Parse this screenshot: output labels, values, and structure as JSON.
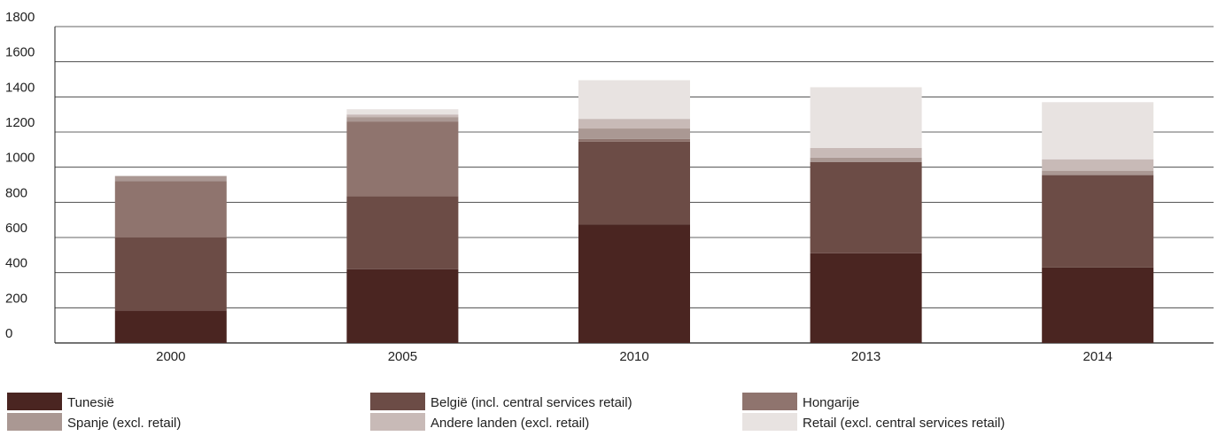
{
  "chart_data": {
    "type": "bar",
    "stacked": true,
    "title": "",
    "xlabel": "",
    "ylabel": "",
    "ylim": [
      0,
      1800
    ],
    "yticks": [
      0,
      200,
      400,
      600,
      800,
      1000,
      1200,
      1400,
      1600,
      1800
    ],
    "grid": true,
    "legend_position": "bottom",
    "categories": [
      "2000",
      "2005",
      "2010",
      "2013",
      "2014"
    ],
    "series": [
      {
        "name": "Tunesië",
        "color": "#4a2521",
        "values": [
          185,
          420,
          675,
          510,
          430
        ]
      },
      {
        "name": "België (incl. central services retail)",
        "color": "#6c4c46",
        "values": [
          415,
          415,
          470,
          520,
          525
        ]
      },
      {
        "name": "Hongarije",
        "color": "#8f746e",
        "values": [
          320,
          425,
          15,
          0,
          0
        ]
      },
      {
        "name": "Spanje (excl. retail)",
        "color": "#aa9893",
        "values": [
          30,
          25,
          60,
          25,
          25
        ]
      },
      {
        "name": "Andere landen (excl. retail)",
        "color": "#c8bab7",
        "values": [
          0,
          15,
          55,
          55,
          65
        ]
      },
      {
        "name": "Retail (excl. central services retail)",
        "color": "#e8e3e1",
        "values": [
          0,
          30,
          220,
          345,
          325
        ]
      }
    ]
  }
}
